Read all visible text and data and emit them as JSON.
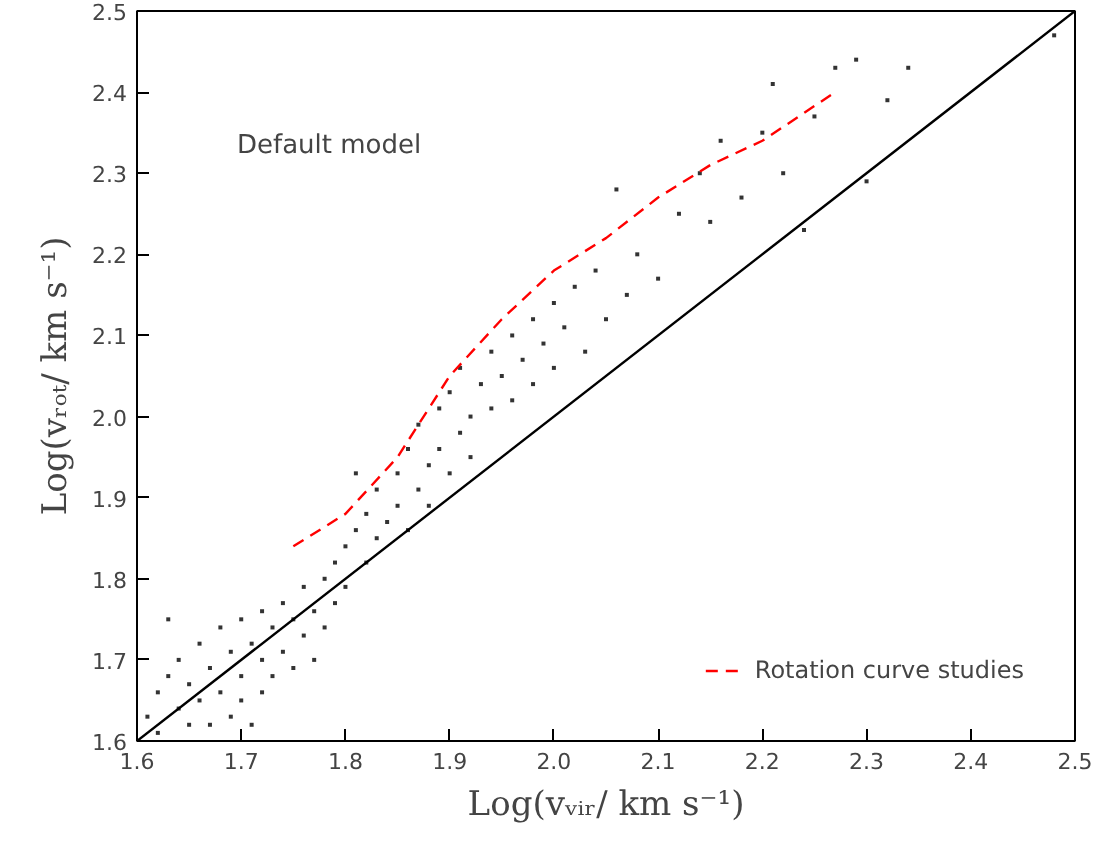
{
  "chart_data": {
    "type": "scatter",
    "xlabel": "Log(vᵥᵢᵣ/ km s⁻¹)",
    "ylabel": "Log(vᵣₒₜ/ km s⁻¹)",
    "xlim": [
      1.6,
      2.5
    ],
    "ylim": [
      1.6,
      2.5
    ],
    "xticks": [
      {
        "value": 1.6,
        "label": "1.6"
      },
      {
        "value": 1.7,
        "label": "1.7"
      },
      {
        "value": 1.8,
        "label": "1.8"
      },
      {
        "value": 1.9,
        "label": "1.9"
      },
      {
        "value": 2.0,
        "label": "2.0"
      },
      {
        "value": 2.1,
        "label": "2.1"
      },
      {
        "value": 2.2,
        "label": "2.2"
      },
      {
        "value": 2.3,
        "label": "2.3"
      },
      {
        "value": 2.4,
        "label": "2.4"
      },
      {
        "value": 2.5,
        "label": "2.5"
      }
    ],
    "yticks": [
      {
        "value": 1.6,
        "label": "1.6"
      },
      {
        "value": 1.7,
        "label": "1.7"
      },
      {
        "value": 1.8,
        "label": "1.8"
      },
      {
        "value": 1.9,
        "label": "1.9"
      },
      {
        "value": 2.0,
        "label": "2.0"
      },
      {
        "value": 2.1,
        "label": "2.1"
      },
      {
        "value": 2.2,
        "label": "2.2"
      },
      {
        "value": 2.3,
        "label": "2.3"
      },
      {
        "value": 2.4,
        "label": "2.4"
      },
      {
        "value": 2.5,
        "label": "2.5"
      }
    ],
    "annotations": [
      "Default model"
    ],
    "legend": "bottom right",
    "series": [
      {
        "color": "#333333",
        "marker": "square",
        "x": [
          1.61,
          1.62,
          1.62,
          1.63,
          1.63,
          1.64,
          1.64,
          1.65,
          1.65,
          1.66,
          1.66,
          1.67,
          1.67,
          1.68,
          1.68,
          1.69,
          1.69,
          1.7,
          1.7,
          1.7,
          1.71,
          1.71,
          1.72,
          1.72,
          1.72,
          1.73,
          1.73,
          1.74,
          1.74,
          1.75,
          1.75,
          1.76,
          1.76,
          1.77,
          1.77,
          1.78,
          1.78,
          1.79,
          1.79,
          1.8,
          1.8,
          1.81,
          1.81,
          1.82,
          1.82,
          1.83,
          1.83,
          1.84,
          1.85,
          1.85,
          1.86,
          1.86,
          1.87,
          1.87,
          1.88,
          1.88,
          1.89,
          1.89,
          1.9,
          1.9,
          1.91,
          1.91,
          1.92,
          1.92,
          1.93,
          1.94,
          1.94,
          1.95,
          1.96,
          1.96,
          1.97,
          1.98,
          1.98,
          1.99,
          2.0,
          2.0,
          2.01,
          2.02,
          2.03,
          2.04,
          2.05,
          2.06,
          2.07,
          2.08,
          2.1,
          2.12,
          2.14,
          2.15,
          2.16,
          2.18,
          2.2,
          2.21,
          2.22,
          2.24,
          2.25,
          2.27,
          2.29,
          2.3,
          2.32,
          2.34,
          2.48
        ],
        "values": [
          1.63,
          1.66,
          1.61,
          1.68,
          1.75,
          1.64,
          1.7,
          1.62,
          1.67,
          1.72,
          1.65,
          1.69,
          1.62,
          1.74,
          1.66,
          1.71,
          1.63,
          1.75,
          1.68,
          1.65,
          1.72,
          1.62,
          1.76,
          1.7,
          1.66,
          1.74,
          1.68,
          1.77,
          1.71,
          1.75,
          1.69,
          1.79,
          1.73,
          1.76,
          1.7,
          1.8,
          1.74,
          1.82,
          1.77,
          1.84,
          1.79,
          1.86,
          1.93,
          1.82,
          1.88,
          1.85,
          1.91,
          1.87,
          1.93,
          1.89,
          1.86,
          1.96,
          1.91,
          1.99,
          1.94,
          1.89,
          2.01,
          1.96,
          1.93,
          2.03,
          1.98,
          2.06,
          2.0,
          1.95,
          2.04,
          2.08,
          2.01,
          2.05,
          2.1,
          2.02,
          2.07,
          2.12,
          2.04,
          2.09,
          2.14,
          2.06,
          2.11,
          2.16,
          2.08,
          2.18,
          2.12,
          2.28,
          2.15,
          2.2,
          2.17,
          2.25,
          2.3,
          2.24,
          2.34,
          2.27,
          2.35,
          2.41,
          2.3,
          2.23,
          2.37,
          2.43,
          2.44,
          2.29,
          2.39,
          2.43,
          2.47
        ]
      },
      {
        "type": "line",
        "color": "#000000",
        "line_style": "solid",
        "x": [
          1.6,
          2.5
        ],
        "values": [
          1.6,
          2.5
        ]
      },
      {
        "type": "line",
        "name": "Rotation curve studies",
        "color": "#ff0000",
        "line_style": "dashed",
        "x": [
          1.75,
          1.8,
          1.85,
          1.9,
          1.95,
          2.0,
          2.05,
          2.1,
          2.15,
          2.2,
          2.27
        ],
        "values": [
          1.84,
          1.88,
          1.95,
          2.05,
          2.12,
          2.18,
          2.22,
          2.27,
          2.31,
          2.34,
          2.4
        ]
      }
    ]
  }
}
